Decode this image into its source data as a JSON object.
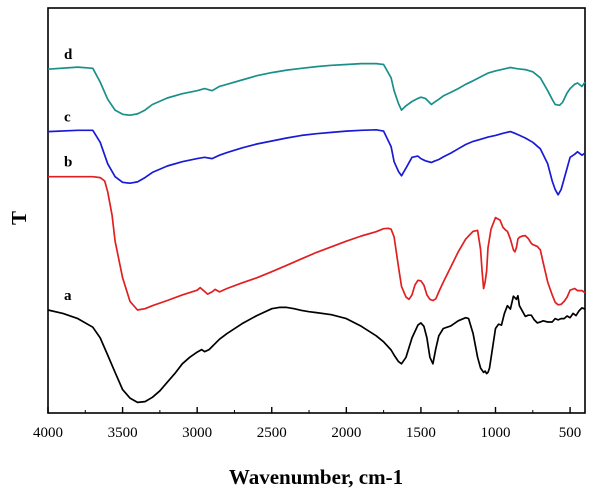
{
  "chart_data": {
    "type": "line",
    "title": "",
    "xlabel": "Wavenumber, cm-1",
    "ylabel": "T",
    "xlim": [
      4000,
      400
    ],
    "x_reversed": true,
    "y_ticks_shown": false,
    "grid": false,
    "legend": "inline labels",
    "x_ticks": [
      "4000",
      "3500",
      "3000",
      "2500",
      "2000",
      "1500",
      "1000",
      "500"
    ],
    "x_tick_values": [
      4000,
      3500,
      3000,
      2500,
      2000,
      1500,
      1000,
      500
    ],
    "series": [
      {
        "name": "d",
        "color": "#1a8f8a",
        "x": [
          4000,
          3800,
          3700,
          3650,
          3600,
          3550,
          3500,
          3450,
          3400,
          3350,
          3300,
          3200,
          3100,
          3000,
          2950,
          2900,
          2850,
          2800,
          2700,
          2600,
          2500,
          2400,
          2300,
          2200,
          2100,
          2000,
          1900,
          1800,
          1750,
          1700,
          1680,
          1650,
          1630,
          1600,
          1560,
          1520,
          1500,
          1470,
          1430,
          1410,
          1380,
          1350,
          1300,
          1250,
          1200,
          1150,
          1100,
          1050,
          1000,
          950,
          900,
          870,
          850,
          800,
          750,
          700,
          650,
          620,
          600,
          570,
          550,
          520,
          500,
          470,
          450,
          420,
          400
        ],
        "y": [
          56,
          56.5,
          56.2,
          53,
          49,
          46.5,
          45.5,
          45.3,
          45.6,
          46.5,
          47.8,
          49.3,
          50.3,
          51,
          51.5,
          51,
          52,
          52.5,
          53.5,
          54.5,
          55.2,
          55.8,
          56.2,
          56.6,
          56.9,
          57.1,
          57.3,
          57.3,
          57.1,
          54,
          51,
          48,
          46.5,
          47.5,
          48.5,
          49.2,
          49.5,
          49.2,
          47.8,
          48.3,
          49,
          49.8,
          50.6,
          51.5,
          52.5,
          53.3,
          54.2,
          55.1,
          55.6,
          56,
          56.4,
          56.2,
          56.1,
          55.9,
          55.4,
          54,
          51,
          49,
          47.8,
          47.6,
          48.3,
          50.5,
          51.5,
          52.5,
          52.8,
          52,
          53
        ]
      },
      {
        "name": "c",
        "color": "#1a1ad6",
        "x": [
          4000,
          3800,
          3700,
          3650,
          3600,
          3550,
          3500,
          3450,
          3400,
          3350,
          3300,
          3200,
          3100,
          3000,
          2950,
          2900,
          2850,
          2800,
          2700,
          2600,
          2500,
          2400,
          2300,
          2200,
          2100,
          2000,
          1900,
          1800,
          1750,
          1700,
          1680,
          1650,
          1630,
          1600,
          1560,
          1520,
          1500,
          1470,
          1430,
          1410,
          1380,
          1350,
          1300,
          1250,
          1200,
          1150,
          1100,
          1050,
          1000,
          950,
          900,
          870,
          850,
          800,
          750,
          700,
          650,
          620,
          600,
          580,
          560,
          520,
          500,
          470,
          450,
          420,
          400
        ],
        "y": [
          41.5,
          41.8,
          41.8,
          39,
          34,
          31,
          29.7,
          29.5,
          29.8,
          30.8,
          32,
          33.5,
          34.5,
          35.2,
          35.5,
          35.2,
          36,
          36.6,
          37.7,
          38.6,
          39.3,
          40,
          40.6,
          41,
          41.3,
          41.6,
          41.8,
          41.9,
          41.6,
          38,
          34.5,
          32.2,
          31.2,
          33,
          35.5,
          35.8,
          35.2,
          34.7,
          34.3,
          34.6,
          35,
          35.6,
          36.5,
          37.5,
          38.5,
          39.2,
          39.7,
          40.2,
          40.6,
          41.1,
          41.5,
          41.1,
          40.8,
          40,
          39,
          37.5,
          34,
          30,
          28,
          26.8,
          28,
          33,
          35.5,
          36.2,
          36.8,
          36,
          36.5
        ]
      },
      {
        "name": "b",
        "color": "#e02020",
        "x": [
          4000,
          3800,
          3700,
          3650,
          3620,
          3600,
          3570,
          3550,
          3500,
          3450,
          3400,
          3350,
          3300,
          3200,
          3100,
          3000,
          2980,
          2950,
          2930,
          2900,
          2880,
          2850,
          2800,
          2700,
          2600,
          2500,
          2400,
          2300,
          2200,
          2100,
          2000,
          1900,
          1800,
          1750,
          1720,
          1700,
          1680,
          1650,
          1630,
          1600,
          1580,
          1560,
          1540,
          1520,
          1500,
          1480,
          1460,
          1440,
          1420,
          1400,
          1380,
          1350,
          1300,
          1250,
          1200,
          1150,
          1120,
          1100,
          1090,
          1080,
          1070,
          1060,
          1050,
          1030,
          1000,
          970,
          950,
          930,
          920,
          900,
          880,
          870,
          860,
          850,
          840,
          820,
          800,
          780,
          760,
          750,
          720,
          700,
          680,
          650,
          620,
          600,
          580,
          560,
          540,
          520,
          500,
          470,
          450,
          420,
          400
        ],
        "y": [
          31,
          31,
          31,
          30.8,
          30,
          27.5,
          22,
          16,
          7.5,
          2,
          0,
          0.3,
          1,
          2.2,
          3.5,
          4.6,
          5.2,
          4.3,
          3.7,
          4.2,
          4.8,
          4.2,
          5,
          6.3,
          7.5,
          8.9,
          10.4,
          11.9,
          13.4,
          14.7,
          16,
          17.2,
          18.2,
          18.9,
          19,
          18.8,
          17,
          10,
          5.5,
          3,
          2.5,
          3.5,
          5.8,
          6.9,
          6.8,
          5.8,
          3.5,
          2.5,
          2.2,
          2.6,
          4.2,
          6.5,
          10,
          13.5,
          16.5,
          18.3,
          18.5,
          14,
          9,
          5,
          6.5,
          9,
          14.5,
          18.8,
          21.5,
          20.9,
          19.2,
          18.5,
          18.3,
          16.5,
          14,
          13.5,
          14.5,
          16.5,
          16.9,
          17.2,
          17.3,
          16.6,
          15.5,
          15.2,
          14.8,
          14,
          11,
          6.5,
          3.5,
          1.8,
          1.2,
          1.3,
          2,
          3,
          4.6,
          5,
          4.5,
          4.5,
          4
        ]
      },
      {
        "name": "a",
        "color": "#000000",
        "x": [
          4000,
          3900,
          3800,
          3700,
          3650,
          3600,
          3550,
          3500,
          3450,
          3400,
          3350,
          3300,
          3250,
          3200,
          3150,
          3100,
          3050,
          3000,
          2970,
          2950,
          2920,
          2900,
          2850,
          2800,
          2700,
          2600,
          2500,
          2450,
          2400,
          2350,
          2300,
          2250,
          2200,
          2100,
          2000,
          1900,
          1800,
          1750,
          1700,
          1680,
          1650,
          1630,
          1600,
          1560,
          1520,
          1500,
          1480,
          1460,
          1440,
          1420,
          1400,
          1380,
          1350,
          1300,
          1250,
          1200,
          1180,
          1150,
          1120,
          1100,
          1080,
          1070,
          1060,
          1050,
          1040,
          1000,
          980,
          960,
          940,
          920,
          900,
          880,
          860,
          850,
          840,
          820,
          800,
          780,
          760,
          740,
          720,
          700,
          680,
          650,
          620,
          600,
          580,
          560,
          540,
          520,
          500,
          480,
          460,
          440,
          420,
          400
        ],
        "y": [
          0,
          -0.8,
          -2,
          -4,
          -6.5,
          -10.5,
          -14.5,
          -18.5,
          -20.5,
          -21.5,
          -21.3,
          -20.3,
          -18.8,
          -16.8,
          -14.8,
          -12.5,
          -11,
          -9.8,
          -9.2,
          -9.7,
          -9.2,
          -8.5,
          -6.8,
          -5.5,
          -3.2,
          -1.3,
          0.3,
          0.6,
          0.6,
          0.3,
          -0.1,
          -0.4,
          -0.6,
          -1.1,
          -2,
          -3.8,
          -6,
          -7.4,
          -9.3,
          -10.5,
          -12,
          -12.5,
          -11,
          -6.5,
          -3.5,
          -3,
          -3.8,
          -6.5,
          -11,
          -12.5,
          -9,
          -6,
          -4.3,
          -3.7,
          -2.5,
          -1.8,
          -2,
          -5.5,
          -11,
          -13.5,
          -14.5,
          -14.2,
          -14.8,
          -14.5,
          -13.5,
          -4.3,
          -3.3,
          -3.5,
          -0.8,
          1,
          0.2,
          3.2,
          2.5,
          3.3,
          1,
          -0.2,
          -1.5,
          -1.2,
          -1.2,
          -2.3,
          -3,
          -2.8,
          -2.5,
          -2.8,
          -2.8,
          -2,
          -2.3,
          -2,
          -2,
          -1.4,
          -1.8,
          -0.8,
          -1.3,
          -0.2,
          0.5,
          0.2
        ]
      }
    ]
  }
}
